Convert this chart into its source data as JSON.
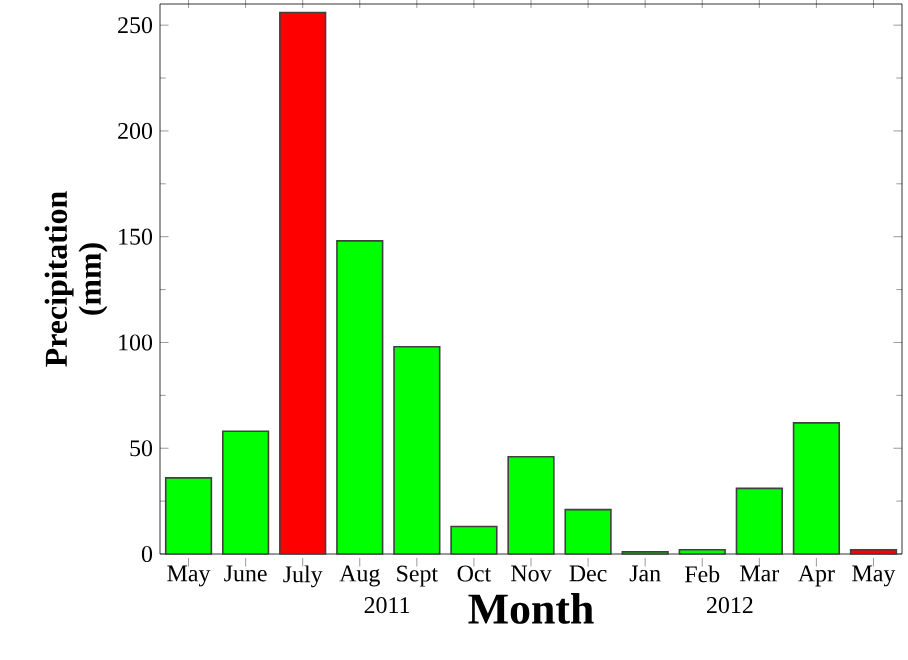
{
  "chart_data": {
    "type": "bar",
    "xlabel": "Month",
    "ylabel": "Precipitation (mm)",
    "categories": [
      "May",
      "June",
      "July",
      "Aug",
      "Sept",
      "Oct",
      "Nov",
      "Dec",
      "Jan",
      "Feb",
      "Mar",
      "Apr",
      "May"
    ],
    "values": [
      36,
      58,
      256,
      148,
      98,
      13,
      46,
      21,
      1,
      2,
      31,
      62,
      2
    ],
    "colors": [
      "#00ff00",
      "#00ff00",
      "#ff0000",
      "#00ff00",
      "#00ff00",
      "#00ff00",
      "#00ff00",
      "#00ff00",
      "#00ff00",
      "#00ff00",
      "#00ff00",
      "#00ff00",
      "#ff0000"
    ],
    "ylim": [
      0,
      260
    ],
    "yticks": [
      0,
      50,
      100,
      150,
      200,
      250
    ],
    "annotations": [
      "2011",
      "2012"
    ],
    "grid": false
  }
}
